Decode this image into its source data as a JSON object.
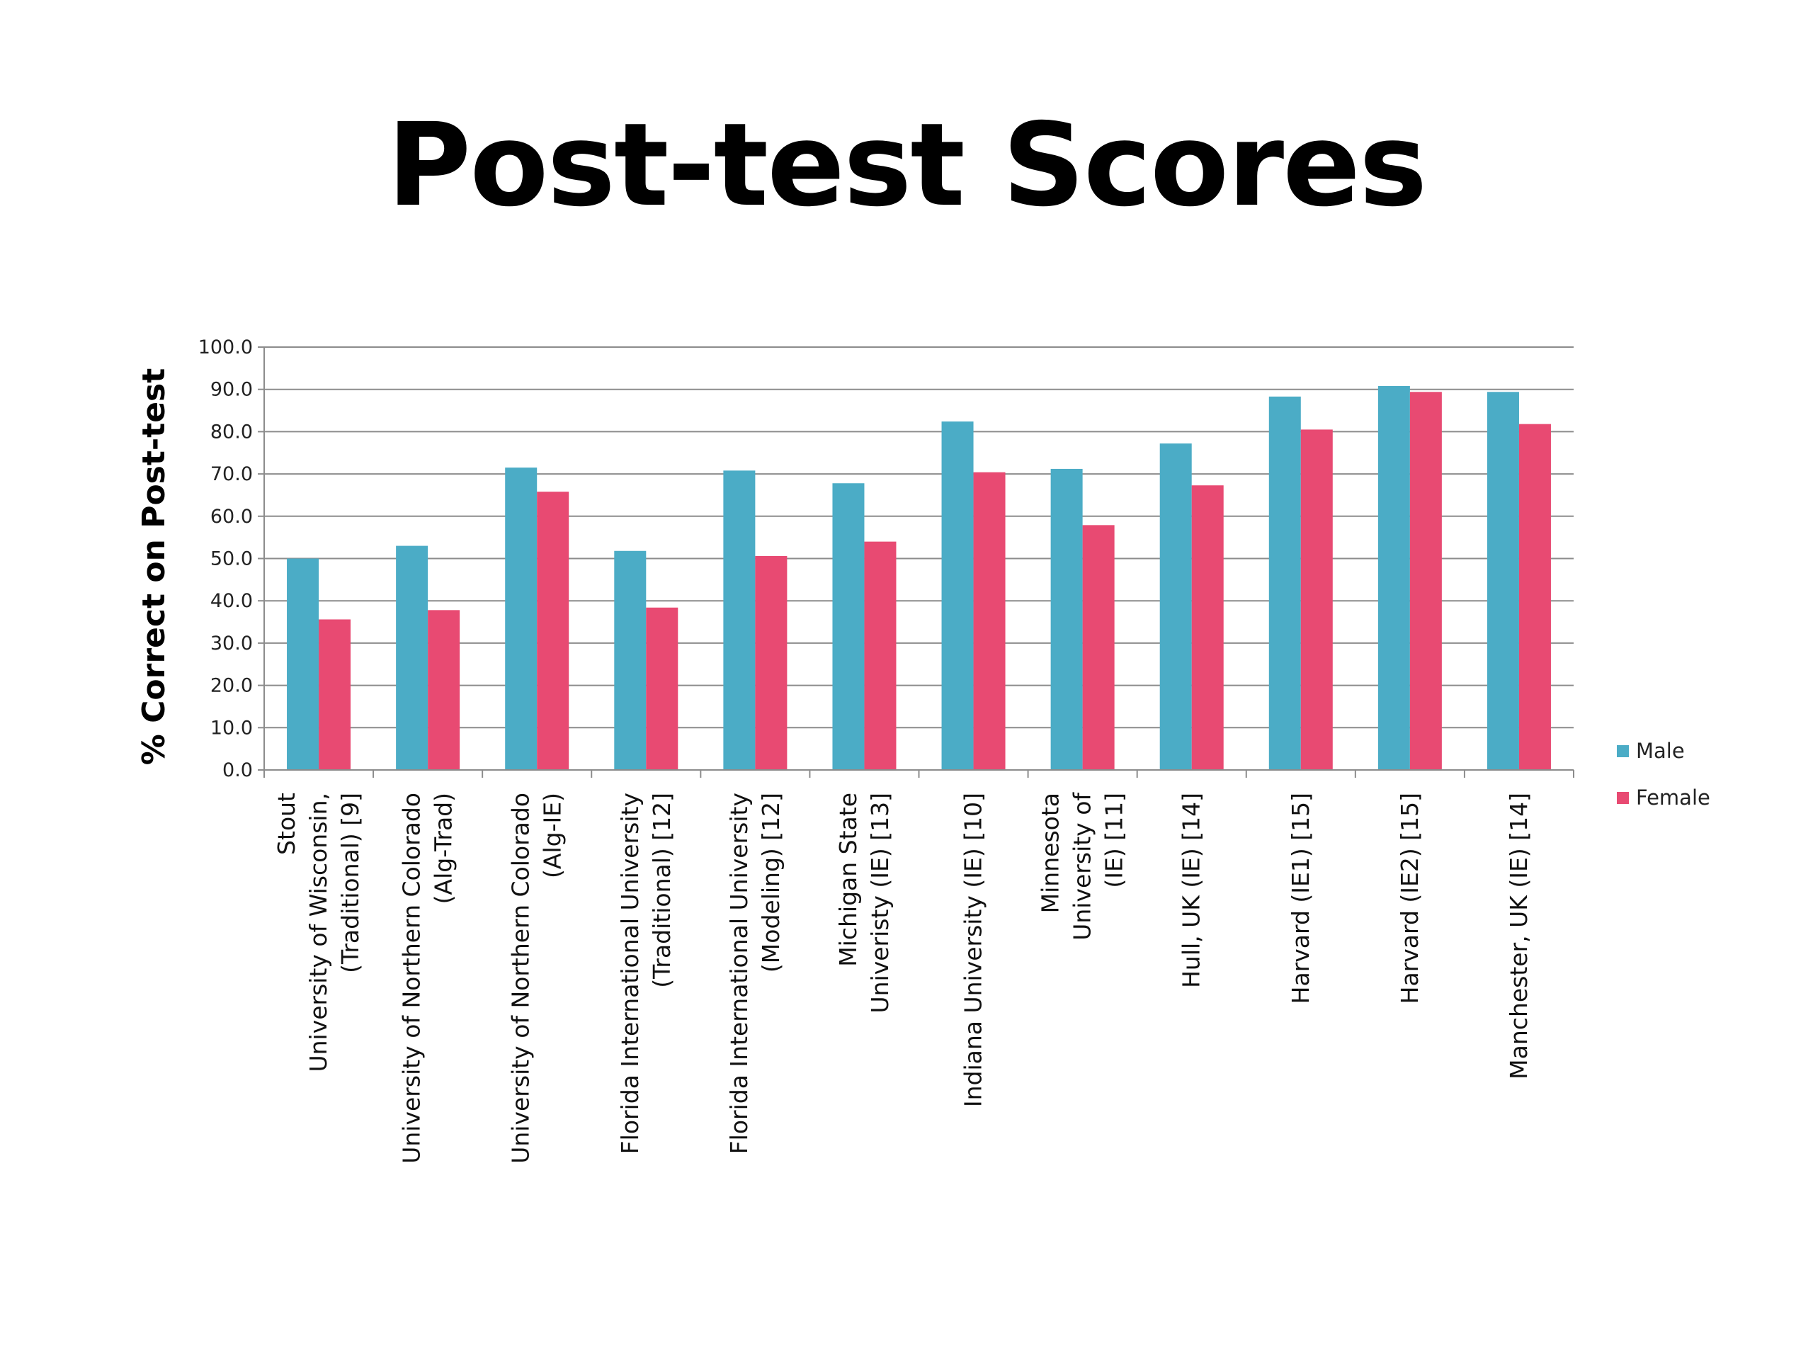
{
  "chart_data": {
    "type": "bar",
    "title": "Post-test Scores",
    "ylabel": "% Correct on Post-test",
    "xlabel": "",
    "ylim": [
      0,
      100
    ],
    "yticks": [
      0,
      10,
      20,
      30,
      40,
      50,
      60,
      70,
      80,
      90,
      100
    ],
    "ytick_labels": [
      "0.0",
      "10.0",
      "20.0",
      "30.0",
      "40.0",
      "50.0",
      "60.0",
      "70.0",
      "80.0",
      "90.0",
      "100.0"
    ],
    "grid": true,
    "legend_position": "right",
    "categories": [
      [
        "Stout",
        "University of Wisconsin,",
        "(Traditional) [9]"
      ],
      [
        "University of Northern Colorado",
        "(Alg-Trad)"
      ],
      [
        "University of Northern Colorado",
        "(Alg-IE)"
      ],
      [
        "Florida International University",
        "(Traditional) [12]"
      ],
      [
        "Florida International University",
        "(Modeling) [12]"
      ],
      [
        "Michigan State",
        "Univeristy (IE) [13]"
      ],
      [
        "Indiana University (IE) [10]"
      ],
      [
        "Minnesota",
        "University of",
        "(IE) [11]"
      ],
      [
        "Hull, UK (IE) [14]"
      ],
      [
        "Harvard (IE1) [15]"
      ],
      [
        "Harvard (IE2) [15]"
      ],
      [
        "Manchester, UK (IE) [14]"
      ]
    ],
    "series": [
      {
        "name": "Male",
        "color": "#4BACC6",
        "values": [
          50.0,
          53.0,
          71.5,
          51.8,
          70.8,
          67.8,
          82.4,
          71.2,
          77.2,
          88.3,
          90.8,
          89.4
        ]
      },
      {
        "name": "Female",
        "color": "#E84A72",
        "values": [
          35.6,
          37.8,
          65.8,
          38.4,
          50.6,
          54.0,
          70.4,
          57.9,
          67.3,
          80.5,
          89.4,
          81.8
        ]
      }
    ]
  }
}
